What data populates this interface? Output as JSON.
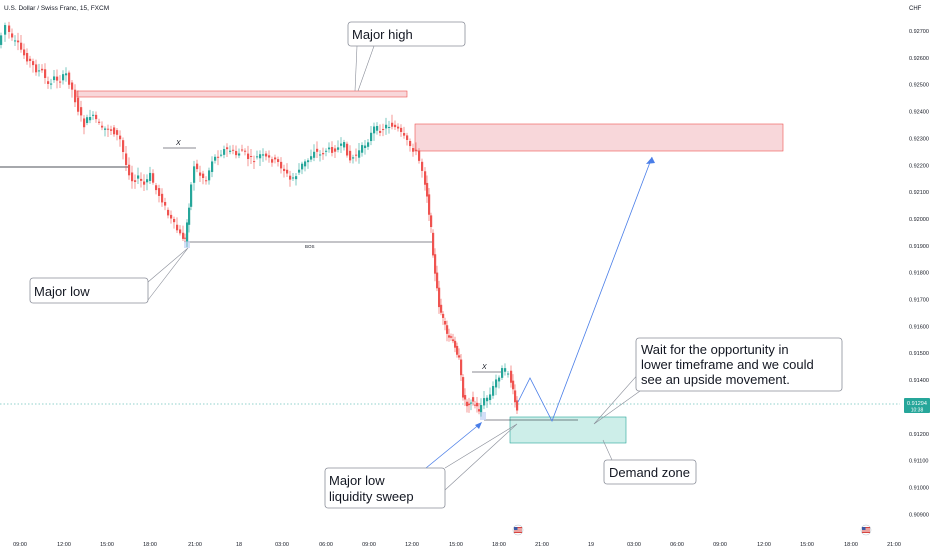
{
  "header": {
    "title": "U.S. Dollar / Swiss Franc, 15, FXCM",
    "currency": "CHF"
  },
  "price_axis": {
    "labels": [
      "0.92700",
      "0.92600",
      "0.92500",
      "0.92400",
      "0.92300",
      "0.92200",
      "0.92100",
      "0.92000",
      "0.91900",
      "0.91800",
      "0.91700",
      "0.91600",
      "0.91500",
      "0.91400",
      "0.91300",
      "0.91200",
      "0.91100",
      "0.91000",
      "0.90900"
    ],
    "current_price": "0.91294",
    "countdown": "10:38"
  },
  "time_axis": {
    "labels": [
      "09:00",
      "12:00",
      "15:00",
      "18:00",
      "21:00",
      "18",
      "03:00",
      "06:00",
      "09:00",
      "12:00",
      "15:00",
      "18:00",
      "21:00",
      "19",
      "03:00",
      "06:00",
      "09:00",
      "12:00",
      "15:00",
      "18:00",
      "21:00"
    ]
  },
  "annotations": {
    "major_high": "Major high",
    "major_low": "Major low",
    "liquidity_sweep_line1": "Major low",
    "liquidity_sweep_line2": "liquidity sweep",
    "demand_zone": "Demand zone",
    "note_line1": "Wait for the opportunity in",
    "note_line2": "lower timeframe and we could",
    "note_line3": "see an upside movement.",
    "bos": "BOS",
    "x_mark_1": "X",
    "x_mark_2": "X"
  },
  "colors": {
    "bull": "#26a69a",
    "bear": "#ef5350",
    "supply_fill": "#f8d7da",
    "supply_border": "#ef5350",
    "demand_fill": "#cdeee9",
    "demand_border": "#26a69a",
    "projection": "#4a7ee8",
    "price_tag": "#26a69a"
  }
}
